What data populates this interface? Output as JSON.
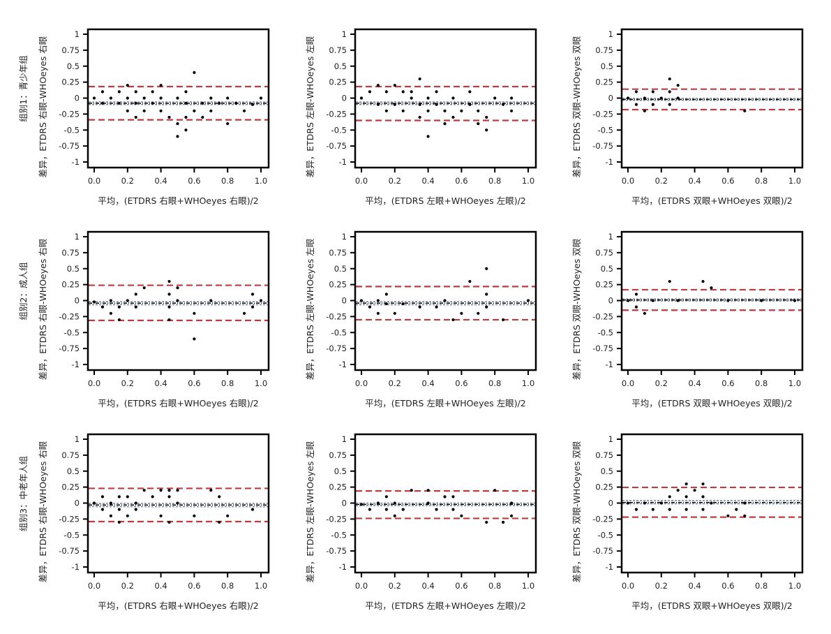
{
  "chart_data": {
    "type": "scatter",
    "layout": "3x3 Bland-Altman grid",
    "xlim": [
      0,
      1
    ],
    "ylim": [
      -1,
      1
    ],
    "xticks": [
      "0.0",
      "0.2",
      "0.4",
      "0.6",
      "0.8",
      "1.0"
    ],
    "xtick_values": [
      0,
      0.2,
      0.4,
      0.6,
      0.8,
      1.0
    ],
    "yticks": [
      "1",
      "0.75",
      "0.5",
      "0.25",
      "0",
      "-0.25",
      "-0.5",
      "-0.75",
      "-1"
    ],
    "ytick_values": [
      1,
      0.75,
      0.5,
      0.25,
      0,
      -0.25,
      -0.5,
      -0.75,
      -1
    ],
    "row_labels": [
      "组别1：青少年组",
      "组别2：成人组",
      "组别3：中老年人组"
    ],
    "colors": {
      "points": "#000000",
      "limits": "#c0393b",
      "mean": "#000000",
      "ci": "#7d8a9a"
    },
    "panels": [
      {
        "row": 0,
        "col": 0,
        "xlabel": "平均，(ETDRS 右眼+WHOeyes 右眼)/2",
        "ylabel": "差异，ETDRS 右眼-WHOeyes 右眼",
        "mean": -0.08,
        "upper": 0.18,
        "lower": -0.34,
        "ci": [
          -0.1,
          -0.06
        ],
        "points": [
          [
            0,
            0
          ],
          [
            0.05,
            0.1
          ],
          [
            0.05,
            -0.08
          ],
          [
            0.1,
            0
          ],
          [
            0.15,
            0.1
          ],
          [
            0.15,
            -0.08
          ],
          [
            0.2,
            0.2
          ],
          [
            0.2,
            0
          ],
          [
            0.2,
            -0.2
          ],
          [
            0.25,
            0.1
          ],
          [
            0.25,
            -0.3
          ],
          [
            0.25,
            -0.08
          ],
          [
            0.3,
            0
          ],
          [
            0.3,
            -0.2
          ],
          [
            0.35,
            0.1
          ],
          [
            0.35,
            -0.08
          ],
          [
            0.4,
            0.2
          ],
          [
            0.4,
            0
          ],
          [
            0.4,
            -0.2
          ],
          [
            0.45,
            -0.3
          ],
          [
            0.5,
            0
          ],
          [
            0.5,
            -0.4
          ],
          [
            0.5,
            -0.6
          ],
          [
            0.55,
            0.1
          ],
          [
            0.55,
            -0.08
          ],
          [
            0.55,
            -0.3
          ],
          [
            0.55,
            -0.5
          ],
          [
            0.6,
            0.4
          ],
          [
            0.6,
            -0.2
          ],
          [
            0.65,
            -0.08
          ],
          [
            0.65,
            -0.3
          ],
          [
            0.7,
            0
          ],
          [
            0.7,
            -0.2
          ],
          [
            0.75,
            -0.08
          ],
          [
            0.8,
            0
          ],
          [
            0.8,
            -0.4
          ],
          [
            0.85,
            -0.08
          ],
          [
            0.9,
            -0.2
          ],
          [
            0.95,
            -0.1
          ],
          [
            1.0,
            0
          ]
        ]
      },
      {
        "row": 0,
        "col": 1,
        "xlabel": "平均，(ETDRS 左眼+WHOeyes 左眼)/2",
        "ylabel": "差异，ETDRS 左眼-WHOeyes 左眼",
        "mean": -0.08,
        "upper": 0.18,
        "lower": -0.35,
        "ci": [
          -0.1,
          -0.06
        ],
        "points": [
          [
            0,
            0
          ],
          [
            0.05,
            0.1
          ],
          [
            0.1,
            0.2
          ],
          [
            0.1,
            -0.1
          ],
          [
            0.15,
            0.1
          ],
          [
            0.15,
            -0.2
          ],
          [
            0.2,
            0.2
          ],
          [
            0.2,
            -0.1
          ],
          [
            0.25,
            0.1
          ],
          [
            0.25,
            -0.2
          ],
          [
            0.3,
            0
          ],
          [
            0.3,
            0.1
          ],
          [
            0.35,
            0.3
          ],
          [
            0.35,
            -0.1
          ],
          [
            0.35,
            -0.3
          ],
          [
            0.4,
            0
          ],
          [
            0.4,
            -0.2
          ],
          [
            0.4,
            -0.6
          ],
          [
            0.45,
            0.1
          ],
          [
            0.45,
            -0.1
          ],
          [
            0.5,
            -0.2
          ],
          [
            0.5,
            -0.4
          ],
          [
            0.55,
            0
          ],
          [
            0.55,
            -0.3
          ],
          [
            0.6,
            -0.2
          ],
          [
            0.65,
            0.1
          ],
          [
            0.65,
            -0.1
          ],
          [
            0.7,
            -0.2
          ],
          [
            0.7,
            -0.4
          ],
          [
            0.75,
            -0.3
          ],
          [
            0.75,
            -0.5
          ],
          [
            0.8,
            0
          ],
          [
            0.85,
            -0.1
          ],
          [
            0.9,
            0
          ],
          [
            0.9,
            -0.2
          ]
        ]
      },
      {
        "row": 0,
        "col": 2,
        "xlabel": "平均，(ETDRS 双眼+WHOeyes 双眼)/2",
        "ylabel": "差异，ETDRS 双眼-WHOeyes 双眼",
        "mean": -0.02,
        "upper": 0.14,
        "lower": -0.18,
        "ci": [
          -0.035,
          -0.005
        ],
        "points": [
          [
            0,
            0
          ],
          [
            0.05,
            0.1
          ],
          [
            0.05,
            -0.1
          ],
          [
            0.1,
            0
          ],
          [
            0.1,
            -0.2
          ],
          [
            0.15,
            0.1
          ],
          [
            0.15,
            -0.1
          ],
          [
            0.2,
            0
          ],
          [
            0.25,
            0.3
          ],
          [
            0.25,
            0.1
          ],
          [
            0.25,
            -0.1
          ],
          [
            0.3,
            0.2
          ],
          [
            0.3,
            0
          ],
          [
            0.7,
            -0.2
          ]
        ]
      },
      {
        "row": 1,
        "col": 0,
        "xlabel": "平均，(ETDRS 右眼+WHOeyes 右眼)/2",
        "ylabel": "差异，ETDRS 右眼-WHOeyes 右眼",
        "mean": -0.04,
        "upper": 0.24,
        "lower": -0.31,
        "ci": [
          -0.065,
          -0.015
        ],
        "points": [
          [
            0,
            -0.02
          ],
          [
            0.05,
            -0.1
          ],
          [
            0.1,
            0
          ],
          [
            0.1,
            -0.2
          ],
          [
            0.15,
            -0.1
          ],
          [
            0.15,
            -0.3
          ],
          [
            0.2,
            0
          ],
          [
            0.25,
            0.1
          ],
          [
            0.25,
            -0.1
          ],
          [
            0.3,
            0.2
          ],
          [
            0.45,
            0.3
          ],
          [
            0.45,
            0.1
          ],
          [
            0.45,
            -0.1
          ],
          [
            0.45,
            -0.3
          ],
          [
            0.5,
            0.2
          ],
          [
            0.5,
            0
          ],
          [
            0.6,
            -0.2
          ],
          [
            0.6,
            -0.6
          ],
          [
            0.7,
            0
          ],
          [
            0.9,
            -0.2
          ],
          [
            0.95,
            0.1
          ],
          [
            0.95,
            -0.1
          ],
          [
            1.0,
            0
          ]
        ]
      },
      {
        "row": 1,
        "col": 1,
        "xlabel": "平均，(ETDRS 左眼+WHOeyes 左眼)/2",
        "ylabel": "差异，ETDRS 左眼-WHOeyes 左眼",
        "mean": -0.04,
        "upper": 0.22,
        "lower": -0.3,
        "ci": [
          -0.065,
          -0.015
        ],
        "points": [
          [
            0,
            0
          ],
          [
            0.05,
            -0.1
          ],
          [
            0.1,
            0
          ],
          [
            0.1,
            -0.2
          ],
          [
            0.15,
            0.1
          ],
          [
            0.15,
            -0.05
          ],
          [
            0.2,
            -0.2
          ],
          [
            0.25,
            -0.05
          ],
          [
            0.35,
            -0.1
          ],
          [
            0.45,
            -0.1
          ],
          [
            0.5,
            0
          ],
          [
            0.55,
            -0.3
          ],
          [
            0.6,
            -0.2
          ],
          [
            0.65,
            0.3
          ],
          [
            0.7,
            -0.2
          ],
          [
            0.75,
            0.5
          ],
          [
            0.75,
            0.1
          ],
          [
            0.75,
            -0.1
          ],
          [
            0.85,
            -0.3
          ],
          [
            1.0,
            0
          ]
        ]
      },
      {
        "row": 1,
        "col": 2,
        "xlabel": "平均，(ETDRS 双眼+WHOeyes 双眼)/2",
        "ylabel": "差异，ETDRS 双眼-WHOeyes 双眼",
        "mean": 0.01,
        "upper": 0.17,
        "lower": -0.15,
        "ci": [
          -0.005,
          0.025
        ],
        "points": [
          [
            0,
            0
          ],
          [
            0.05,
            0.1
          ],
          [
            0.05,
            -0.1
          ],
          [
            0.1,
            -0.2
          ],
          [
            0.15,
            0
          ],
          [
            0.25,
            0.3
          ],
          [
            0.3,
            0
          ],
          [
            0.45,
            0.3
          ],
          [
            0.5,
            0.2
          ],
          [
            0.6,
            0
          ],
          [
            0.8,
            0
          ],
          [
            1.0,
            0
          ]
        ]
      },
      {
        "row": 2,
        "col": 0,
        "xlabel": "平均，(ETDRS 右眼+WHOeyes 右眼)/2",
        "ylabel": "差异，ETDRS 右眼-WHOeyes 右眼",
        "mean": -0.03,
        "upper": 0.23,
        "lower": -0.29,
        "ci": [
          -0.055,
          -0.005
        ],
        "points": [
          [
            0,
            0
          ],
          [
            0.05,
            0.1
          ],
          [
            0.05,
            -0.1
          ],
          [
            0.1,
            0
          ],
          [
            0.1,
            -0.2
          ],
          [
            0.15,
            0.1
          ],
          [
            0.15,
            -0.1
          ],
          [
            0.15,
            -0.3
          ],
          [
            0.2,
            0.1
          ],
          [
            0.2,
            -0.2
          ],
          [
            0.25,
            0
          ],
          [
            0.25,
            -0.1
          ],
          [
            0.3,
            0.2
          ],
          [
            0.35,
            0.1
          ],
          [
            0.4,
            0.2
          ],
          [
            0.4,
            -0.2
          ],
          [
            0.45,
            0.2
          ],
          [
            0.45,
            0.1
          ],
          [
            0.45,
            -0.3
          ],
          [
            0.5,
            0.2
          ],
          [
            0.5,
            0
          ],
          [
            0.6,
            -0.2
          ],
          [
            0.7,
            0.2
          ],
          [
            0.75,
            0.1
          ],
          [
            0.75,
            -0.3
          ],
          [
            0.8,
            -0.2
          ],
          [
            0.95,
            -0.1
          ]
        ]
      },
      {
        "row": 2,
        "col": 1,
        "xlabel": "平均，(ETDRS 左眼+WHOeyes 左眼)/2",
        "ylabel": "差异，ETDRS 左眼-WHOeyes 左眼",
        "mean": -0.02,
        "upper": 0.19,
        "lower": -0.24,
        "ci": [
          -0.04,
          0.0
        ],
        "points": [
          [
            0,
            -0.02
          ],
          [
            0.05,
            -0.1
          ],
          [
            0.1,
            0
          ],
          [
            0.15,
            0.1
          ],
          [
            0.15,
            -0.1
          ],
          [
            0.2,
            0
          ],
          [
            0.2,
            -0.2
          ],
          [
            0.25,
            -0.1
          ],
          [
            0.3,
            0.2
          ],
          [
            0.4,
            0.2
          ],
          [
            0.4,
            0
          ],
          [
            0.45,
            -0.1
          ],
          [
            0.5,
            0.1
          ],
          [
            0.55,
            0.1
          ],
          [
            0.55,
            -0.1
          ],
          [
            0.6,
            -0.2
          ],
          [
            0.75,
            -0.3
          ],
          [
            0.8,
            0.2
          ],
          [
            0.85,
            -0.3
          ],
          [
            0.9,
            -0.2
          ],
          [
            0.9,
            0
          ]
        ]
      },
      {
        "row": 2,
        "col": 2,
        "xlabel": "平均，(ETDRS 双眼+WHOeyes 双眼)/2",
        "ylabel": "差异，ETDRS 双眼-WHOeyes 双眼",
        "mean": 0.01,
        "upper": 0.245,
        "lower": -0.22,
        "ci": [
          -0.01,
          0.04
        ],
        "points": [
          [
            0,
            0
          ],
          [
            0.05,
            -0.1
          ],
          [
            0.1,
            0
          ],
          [
            0.15,
            -0.1
          ],
          [
            0.2,
            0
          ],
          [
            0.25,
            0.1
          ],
          [
            0.25,
            -0.1
          ],
          [
            0.3,
            0.2
          ],
          [
            0.35,
            0.3
          ],
          [
            0.35,
            0.1
          ],
          [
            0.35,
            -0.1
          ],
          [
            0.4,
            0.2
          ],
          [
            0.45,
            0.3
          ],
          [
            0.45,
            0.1
          ],
          [
            0.45,
            -0.1
          ],
          [
            0.5,
            0
          ],
          [
            0.6,
            -0.2
          ],
          [
            0.65,
            -0.1
          ],
          [
            0.7,
            -0.2
          ],
          [
            0.7,
            0
          ]
        ]
      }
    ]
  }
}
